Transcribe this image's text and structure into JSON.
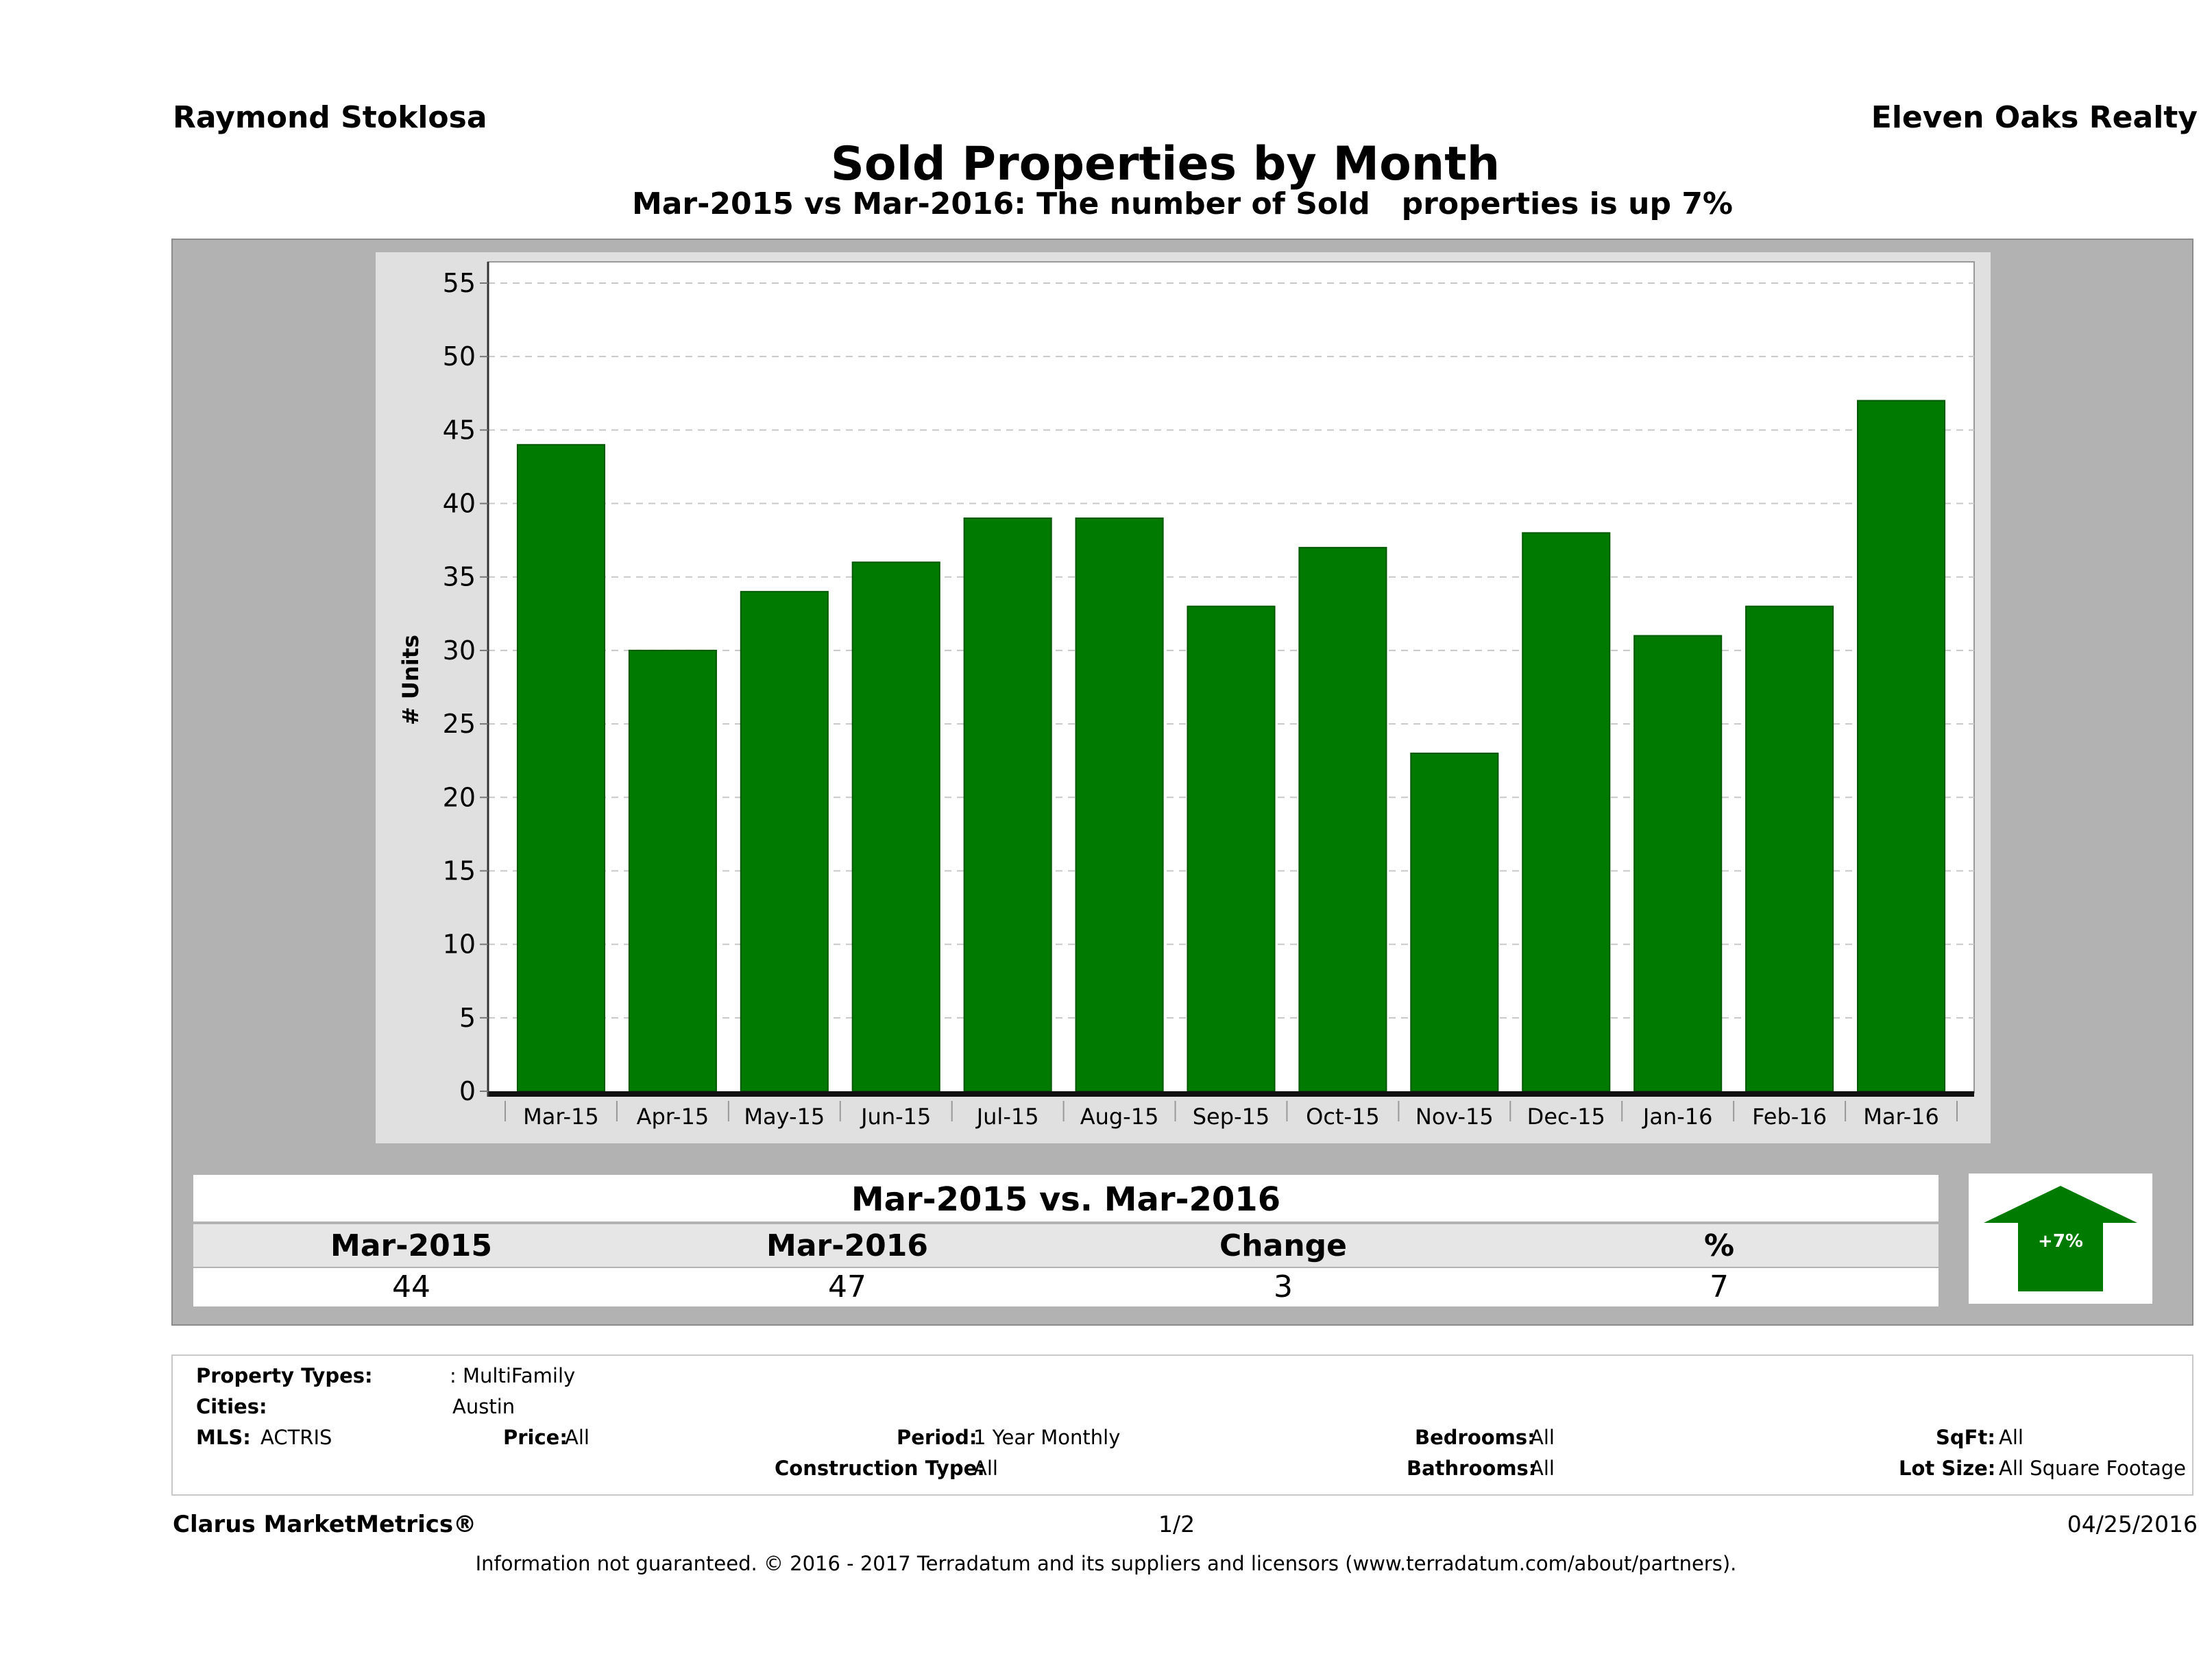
{
  "header": {
    "agent": "Raymond Stoklosa",
    "company": "Eleven Oaks Realty",
    "title": "Sold Properties by Month",
    "subtitle": "Mar-2015 vs Mar-2016: The number of Sold   properties is up 7%"
  },
  "chart_data": {
    "type": "bar",
    "categories": [
      "Mar-15",
      "Apr-15",
      "May-15",
      "Jun-15",
      "Jul-15",
      "Aug-15",
      "Sep-15",
      "Oct-15",
      "Nov-15",
      "Dec-15",
      "Jan-16",
      "Feb-16",
      "Mar-16"
    ],
    "values": [
      44,
      30,
      34,
      36,
      39,
      39,
      33,
      37,
      23,
      38,
      31,
      33,
      47
    ],
    "ylabel": "# Units",
    "xlabel": "",
    "ylim": [
      0,
      55
    ],
    "yticks": [
      0,
      5,
      10,
      15,
      20,
      25,
      30,
      35,
      40,
      45,
      50,
      55
    ],
    "bar_color": "#007a00",
    "grid": true,
    "legend": "none"
  },
  "summary": {
    "title": "Mar-2015 vs. Mar-2016",
    "headers": [
      "Mar-2015",
      "Mar-2016",
      "Change",
      "%"
    ],
    "values": [
      "44",
      "47",
      "3",
      "7"
    ],
    "badge": "+7%",
    "direction": "up",
    "badge_color": "#007a00"
  },
  "criteria": {
    "property_types_label": "Property Types:",
    "property_types_value": ": MultiFamily",
    "cities_label": "Cities:",
    "cities_value": "Austin",
    "mls_label": "MLS:",
    "mls_value": "ACTRIS",
    "price_label": "Price:",
    "price_value": "All",
    "period_label": "Period:",
    "period_value": "1 Year Monthly",
    "construction_label": "Construction Type:",
    "construction_value": "All",
    "bedrooms_label": "Bedrooms:",
    "bedrooms_value": "All",
    "bathrooms_label": "Bathrooms:",
    "bathrooms_value": "All",
    "sqft_label": "SqFt:",
    "sqft_value": "All",
    "lot_label": "Lot Size:",
    "lot_value": "All Square Footage"
  },
  "footer": {
    "brand": "Clarus MarketMetrics®",
    "page": "1/2",
    "date": "04/25/2016",
    "disclaimer": "Information not guaranteed. © 2016 - 2017 Terradatum and its suppliers and licensors (www.terradatum.com/about/partners)."
  }
}
